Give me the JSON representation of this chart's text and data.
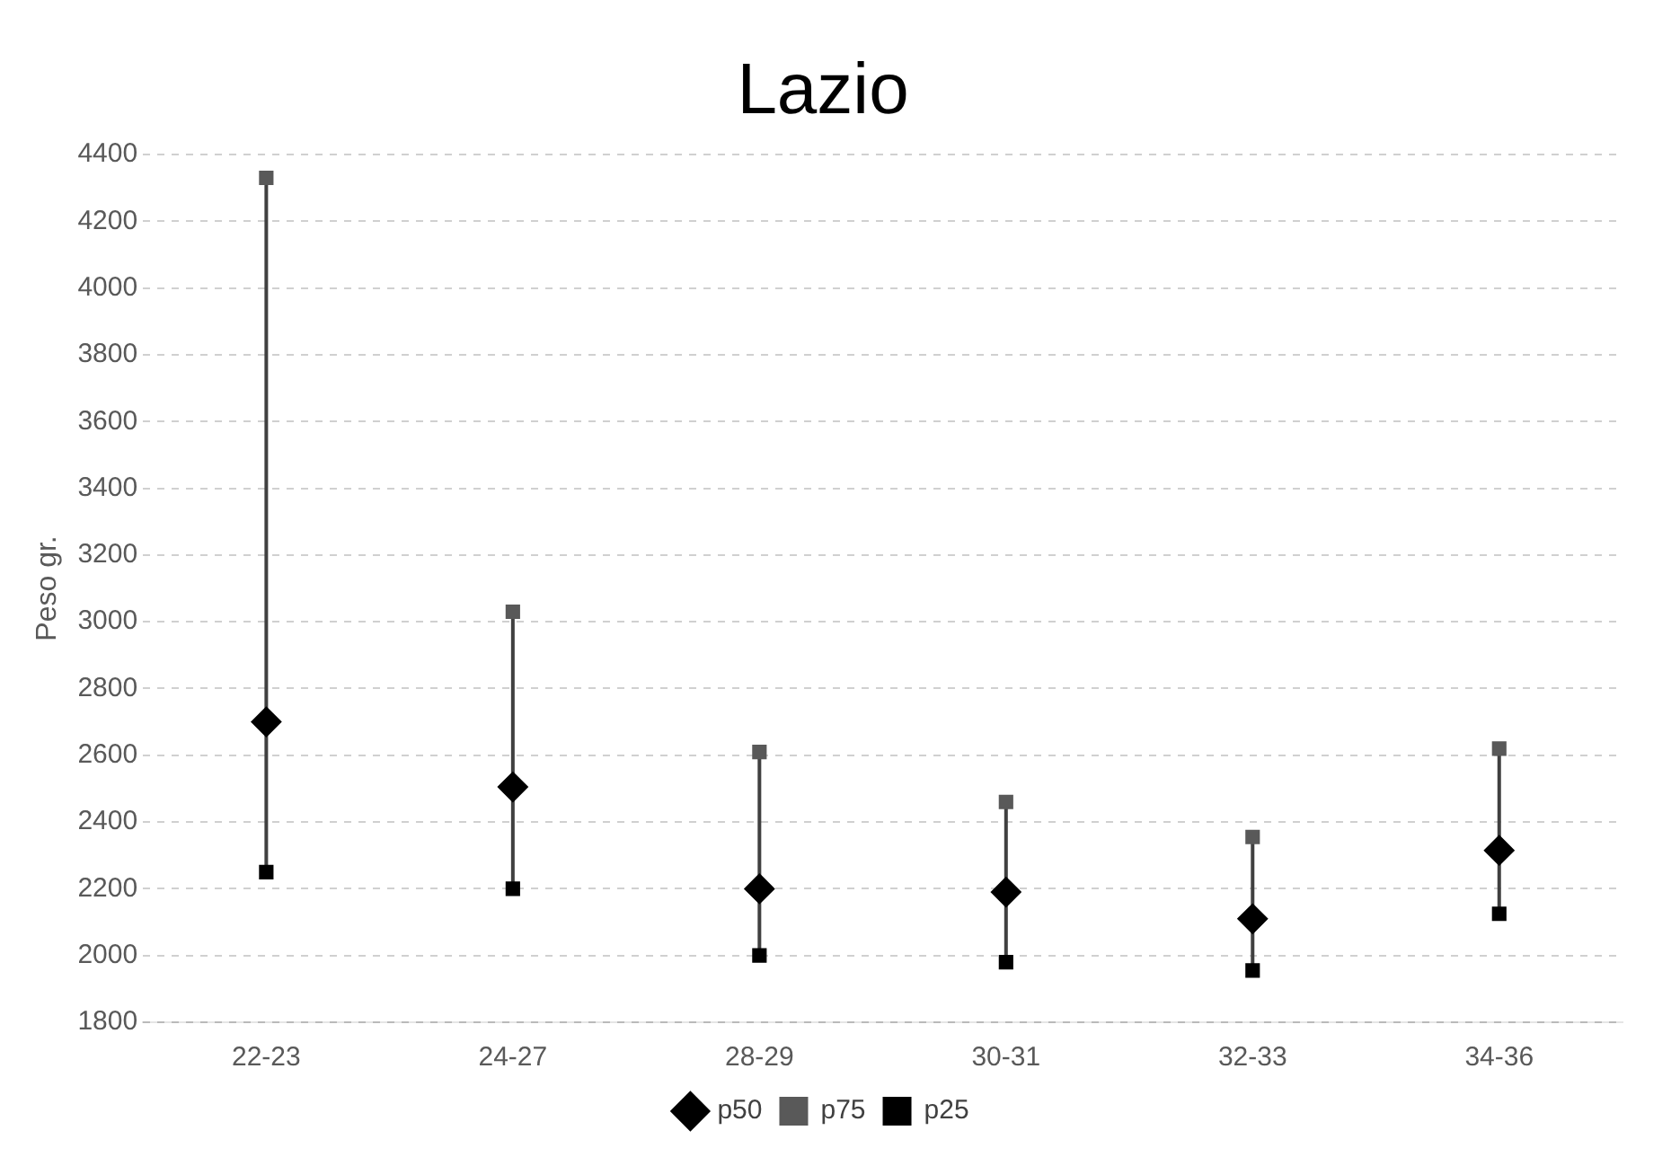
{
  "chart_data": {
    "type": "scatter",
    "title": "Lazio",
    "ylabel": "Peso gr.",
    "categories": [
      "22-23",
      "24-27",
      "28-29",
      "30-31",
      "32-33",
      "34-36"
    ],
    "series": [
      {
        "name": "p75",
        "color": "#595959",
        "marker": "square",
        "values": [
          4330,
          3030,
          2610,
          2460,
          2355,
          2620
        ]
      },
      {
        "name": "p25",
        "color": "#000000",
        "marker": "square",
        "values": [
          2250,
          2200,
          2000,
          1980,
          1955,
          2125
        ]
      },
      {
        "name": "p50",
        "color": "#000000",
        "marker": "diamond",
        "values": [
          2700,
          2505,
          2200,
          2190,
          2110,
          2315
        ]
      }
    ],
    "ylim": [
      1800,
      4400
    ],
    "yticks": [
      1800,
      2000,
      2200,
      2400,
      2600,
      2800,
      3000,
      3200,
      3400,
      3600,
      3800,
      4000,
      4200,
      4400
    ],
    "grid": "y",
    "legend": "bottom"
  }
}
